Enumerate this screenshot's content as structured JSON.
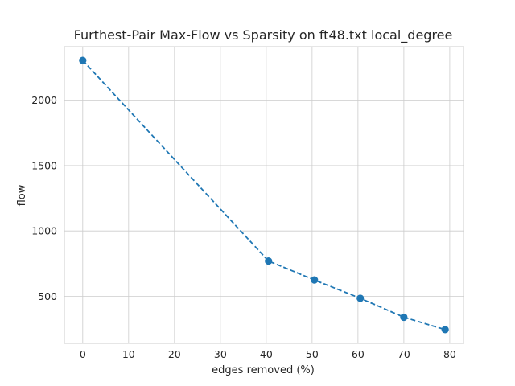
{
  "chart_data": {
    "type": "line",
    "title": "Furthest-Pair Max-Flow vs Sparsity on ft48.txt local_degree",
    "xlabel": "edges removed (%)",
    "ylabel": "flow",
    "xlim": [
      -4,
      83
    ],
    "ylim": [
      140,
      2410
    ],
    "x_ticks": [
      0,
      10,
      20,
      30,
      40,
      50,
      60,
      70,
      80
    ],
    "y_ticks": [
      500,
      1000,
      1500,
      2000
    ],
    "grid": true,
    "series": [
      {
        "color": "#1f77b4",
        "line_style": "dashed",
        "marker": "circle",
        "x": [
          0,
          40.5,
          50.5,
          60.5,
          70,
          79
        ],
        "y": [
          2305,
          770,
          625,
          485,
          340,
          245
        ]
      }
    ]
  }
}
